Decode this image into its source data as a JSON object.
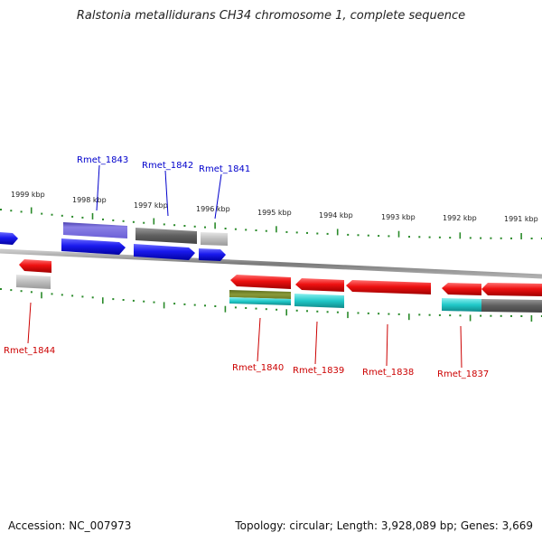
{
  "title": "Ralstonia metallidurans CH34 chromosome 1, complete sequence",
  "footer": {
    "accession": "Accession: NC_007973",
    "topology": "Topology: circular; Length: 3,928,089 bp; Genes: 3,669"
  },
  "colors": {
    "backbone": "#8a8a8a",
    "tick": "#2a8a2a",
    "label_forward": "#0000cc",
    "label_reverse": "#cc0000",
    "gene_blue": "#1a1aee",
    "gene_red": "#ee1111",
    "feature_purple": "#6b5fd6",
    "feature_darkgray": "#6f6f6f",
    "feature_lightgray": "#bdbdbd",
    "feature_cyan": "#20c8c8",
    "feature_olive": "#7a8a2a"
  },
  "scale": {
    "labels": [
      "1999 kbp",
      "1998 kbp",
      "1997 kbp",
      "1996 kbp",
      "1995 kbp",
      "1994 kbp",
      "1993 kbp",
      "1992 kbp",
      "1991 kbp"
    ]
  },
  "genes_forward": [
    {
      "name": "Rmet_1843"
    },
    {
      "name": "Rmet_1842"
    },
    {
      "name": "Rmet_1841"
    }
  ],
  "genes_reverse": [
    {
      "name": "Rmet_1844"
    },
    {
      "name": "Rmet_1840"
    },
    {
      "name": "Rmet_1839"
    },
    {
      "name": "Rmet_1838"
    },
    {
      "name": "Rmet_1837"
    }
  ]
}
